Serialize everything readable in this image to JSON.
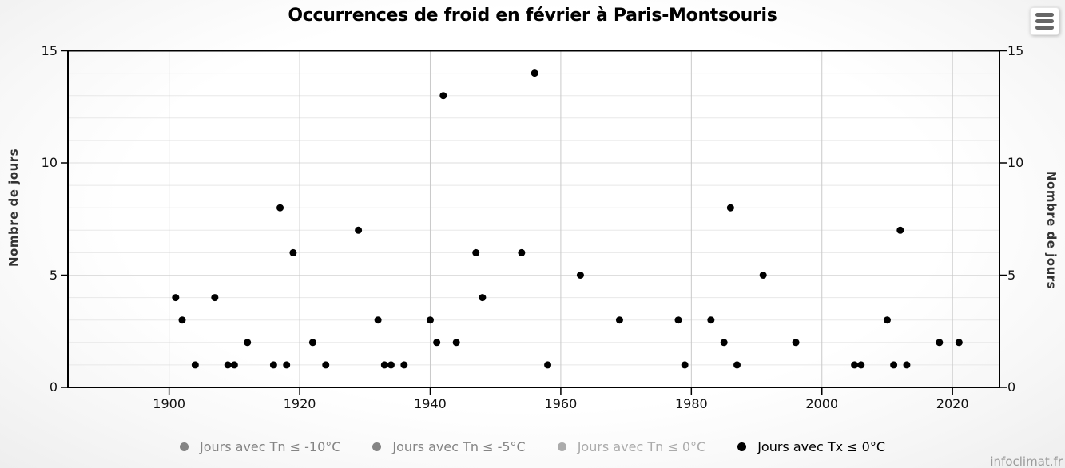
{
  "watermark": "infoclimat.fr",
  "chart_data": {
    "type": "scatter",
    "title": "Occurrences de froid en février à Paris-Montsouris",
    "xlabel": "",
    "ylabel": "Nombre de jours",
    "xlim": [
      1884.5,
      2027.2
    ],
    "ylim": [
      0,
      15
    ],
    "x_ticks": [
      1900,
      1920,
      1940,
      1960,
      1980,
      2000,
      2020
    ],
    "y_ticks": [
      0,
      5,
      10,
      15
    ],
    "y_minor_step": 1,
    "grid": true,
    "legend_position": "bottom",
    "marker_radius": 4.5,
    "series": [
      {
        "name": "Jours avec Tn ≤ -10°C",
        "visible": false,
        "color": "#848484",
        "legend_color": "#848484",
        "points": []
      },
      {
        "name": "Jours avec Tn ≤ -5°C",
        "visible": false,
        "color": "#848484",
        "legend_color": "#848484",
        "points": []
      },
      {
        "name": "Jours avec Tn ≤ 0°C",
        "visible": false,
        "color": "#ababab",
        "legend_color": "#ababab",
        "points": []
      },
      {
        "name": "Jours avec Tx ≤ 0°C",
        "visible": true,
        "color": "#000000",
        "legend_color": "#000000",
        "points": [
          [
            1901,
            4
          ],
          [
            1902,
            3
          ],
          [
            1904,
            1
          ],
          [
            1907,
            4
          ],
          [
            1909,
            1
          ],
          [
            1910,
            1
          ],
          [
            1912,
            2
          ],
          [
            1916,
            1
          ],
          [
            1917,
            8
          ],
          [
            1918,
            1
          ],
          [
            1919,
            6
          ],
          [
            1922,
            2
          ],
          [
            1924,
            1
          ],
          [
            1929,
            7
          ],
          [
            1932,
            3
          ],
          [
            1933,
            1
          ],
          [
            1934,
            1
          ],
          [
            1936,
            1
          ],
          [
            1940,
            3
          ],
          [
            1941,
            2
          ],
          [
            1942,
            13
          ],
          [
            1944,
            2
          ],
          [
            1947,
            6
          ],
          [
            1948,
            4
          ],
          [
            1954,
            6
          ],
          [
            1956,
            14
          ],
          [
            1958,
            1
          ],
          [
            1963,
            5
          ],
          [
            1969,
            3
          ],
          [
            1978,
            3
          ],
          [
            1979,
            1
          ],
          [
            1983,
            3
          ],
          [
            1985,
            2
          ],
          [
            1986,
            8
          ],
          [
            1987,
            1
          ],
          [
            1991,
            5
          ],
          [
            1996,
            2
          ],
          [
            2005,
            1
          ],
          [
            2006,
            1
          ],
          [
            2010,
            3
          ],
          [
            2011,
            1
          ],
          [
            2012,
            7
          ],
          [
            2013,
            1
          ],
          [
            2018,
            2
          ],
          [
            2021,
            2
          ]
        ]
      }
    ]
  }
}
